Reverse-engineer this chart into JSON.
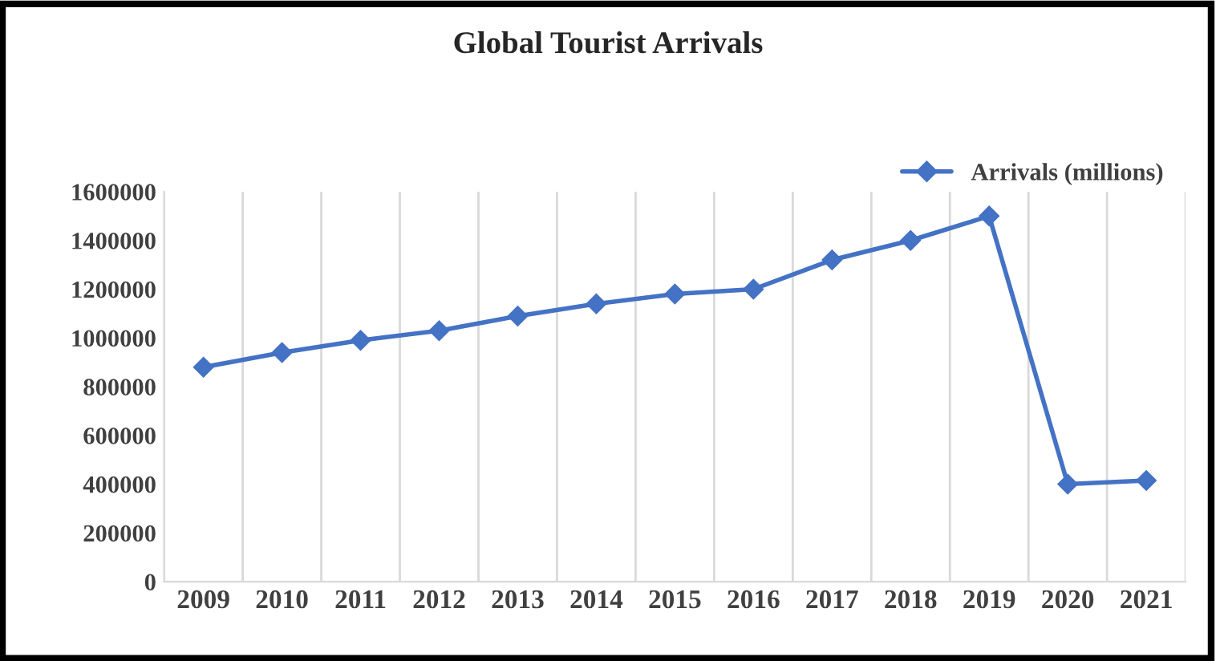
{
  "chart_data": {
    "type": "line",
    "title": "Global Tourist Arrivals",
    "categories": [
      "2009",
      "2010",
      "2011",
      "2012",
      "2013",
      "2014",
      "2015",
      "2016",
      "2017",
      "2018",
      "2019",
      "2020",
      "2021"
    ],
    "series": [
      {
        "name": "Arrivals (millions)",
        "color": "#4472c4",
        "values": [
          880000,
          940000,
          990000,
          1030000,
          1090000,
          1140000,
          1180000,
          1200000,
          1320000,
          1400000,
          1500000,
          400000,
          415000
        ]
      }
    ],
    "ylim": [
      0,
      1600000
    ],
    "yticks": [
      0,
      200000,
      400000,
      600000,
      800000,
      1000000,
      1200000,
      1400000,
      1600000
    ],
    "grid": "x",
    "legend": "top right",
    "marker": "diamond",
    "line_style": "solid"
  }
}
